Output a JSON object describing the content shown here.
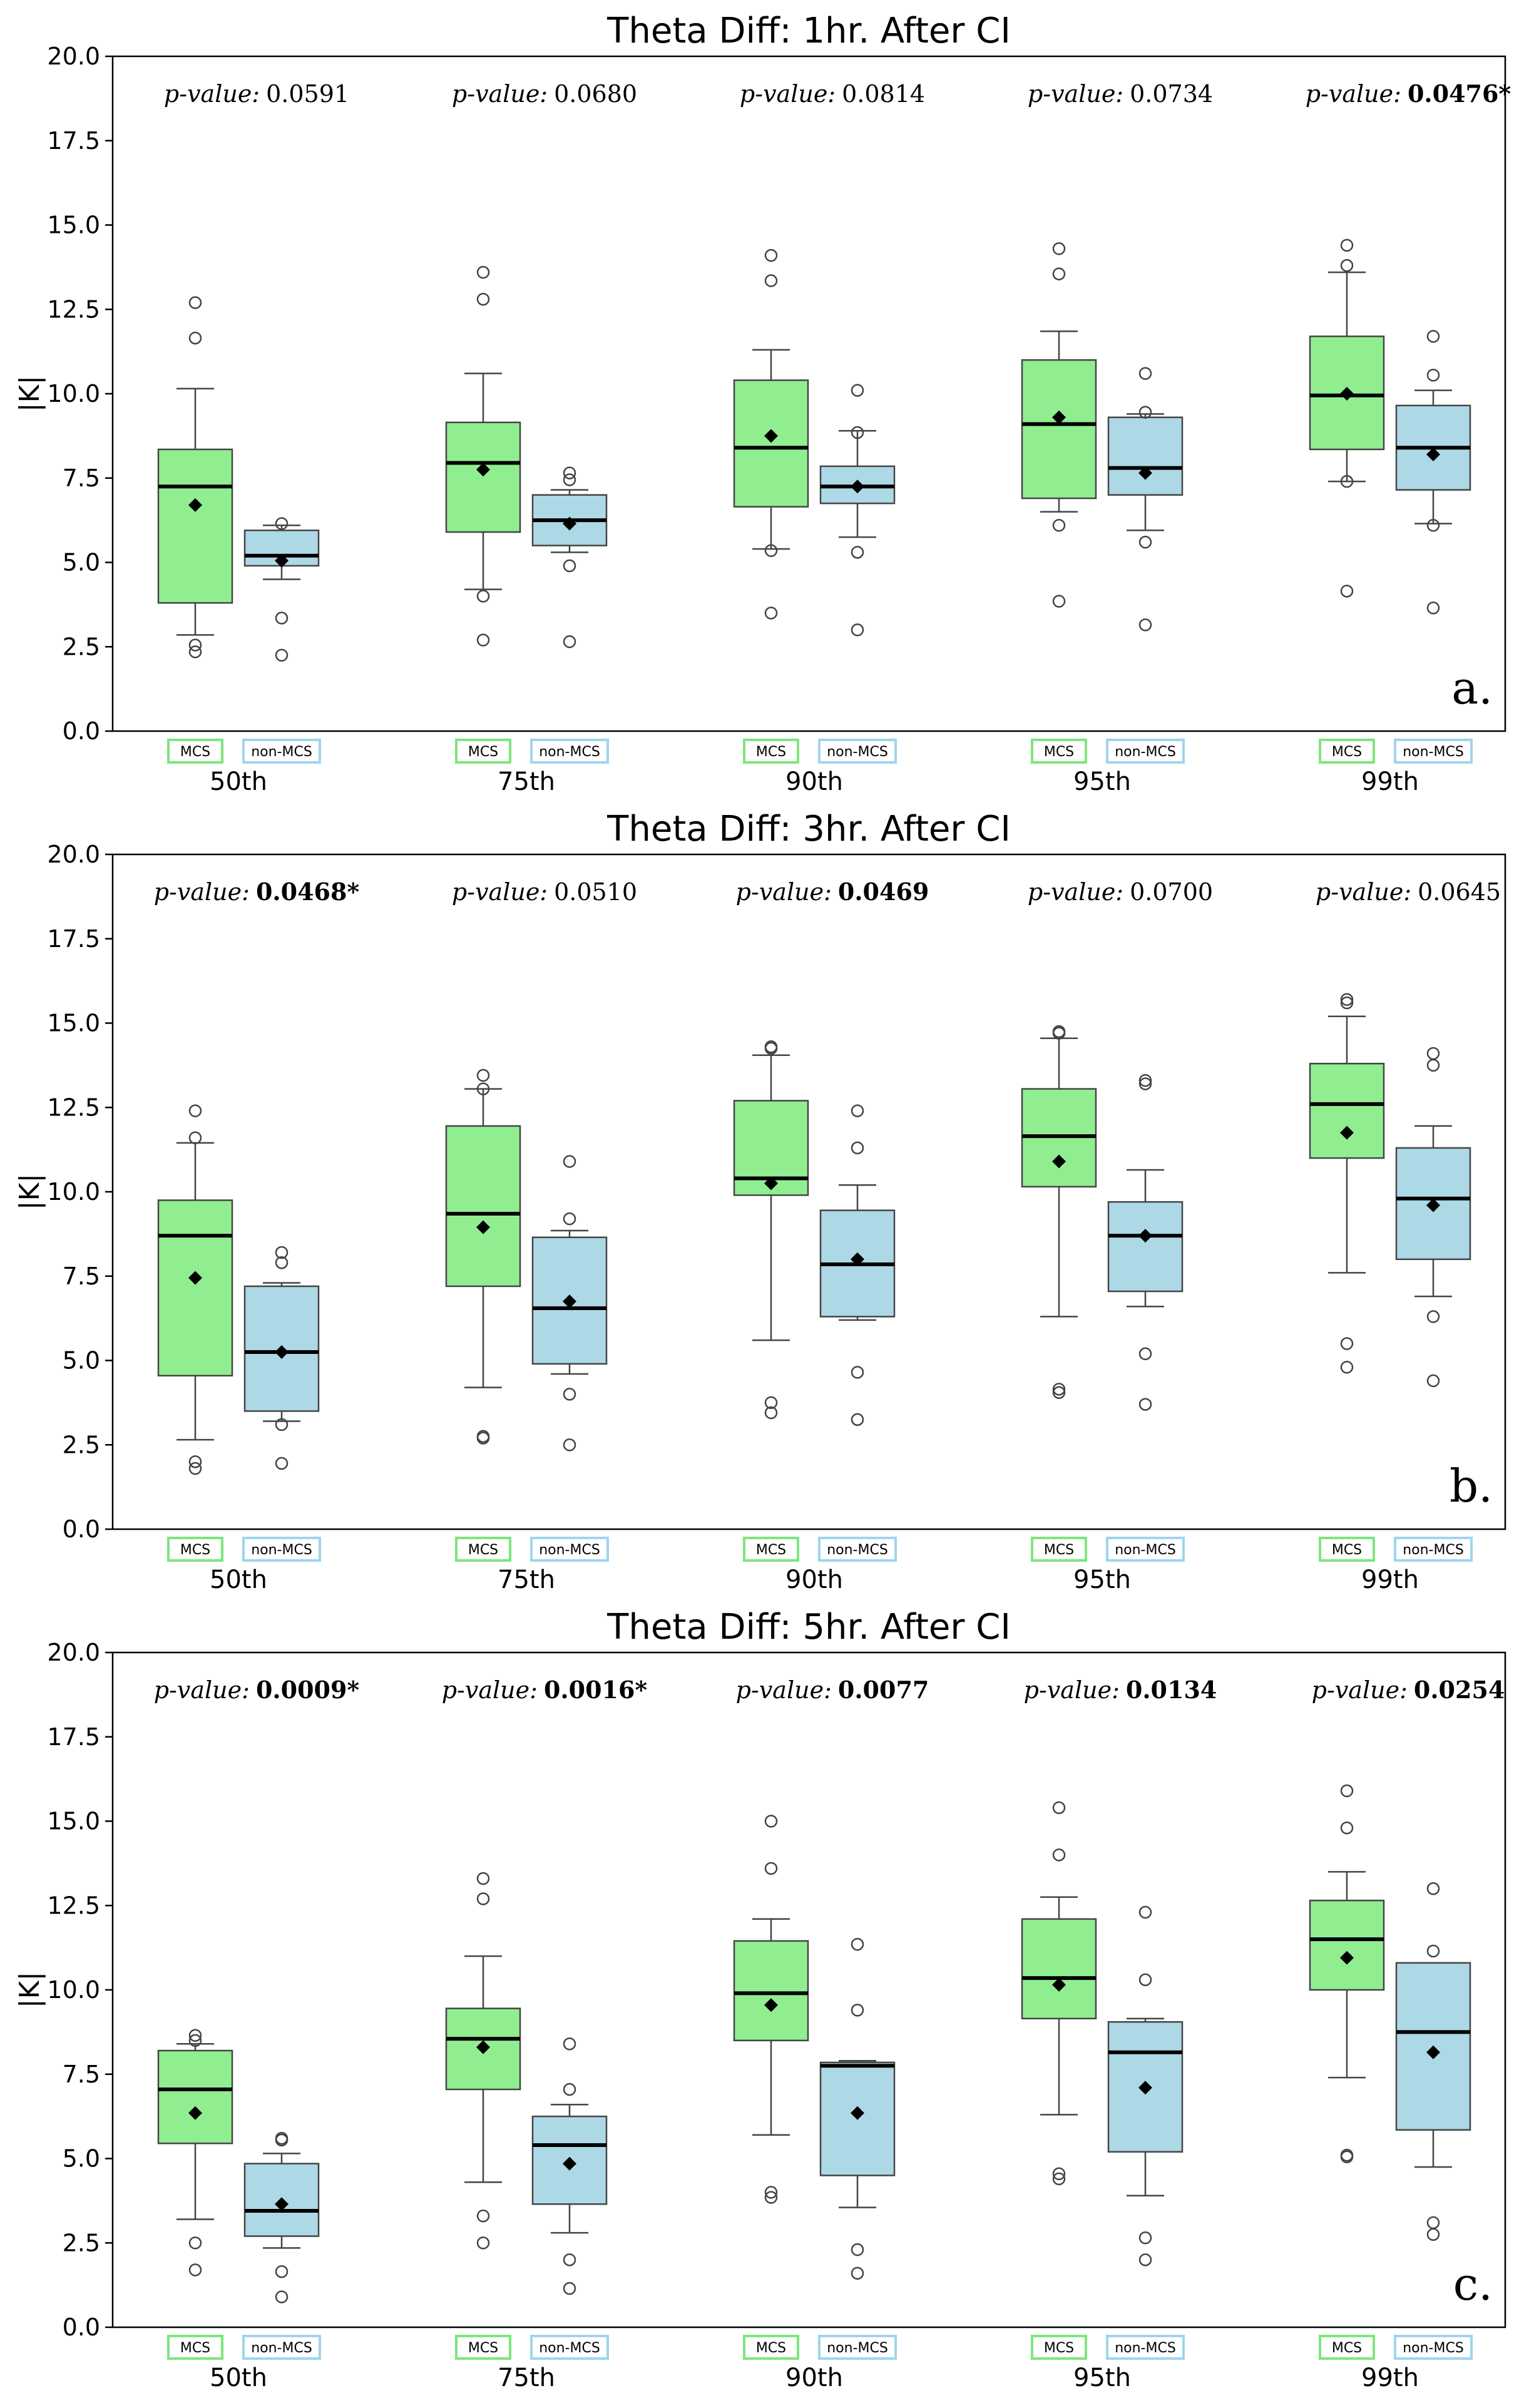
{
  "figure": {
    "y_label": "|K|",
    "groups": [
      "MCS",
      "non-MCS"
    ],
    "group_colors": {
      "MCS": "#90EE90",
      "non-MCS": "#ADD8E6"
    },
    "group_edge_colors": {
      "MCS": "#7ee57e",
      "non-MCS": "#9fd4ef"
    },
    "percentiles": [
      "50th",
      "75th",
      "90th",
      "95th",
      "99th"
    ],
    "p_value_label": "p-value:"
  },
  "chart_data": [
    {
      "type": "box",
      "panel": "a.",
      "title": "Theta Diff: 1hr. After CI",
      "ylabel": "|K|",
      "ylim": [
        0,
        20
      ],
      "yticks": [
        "0.0",
        "2.5",
        "5.0",
        "7.5",
        "10.0",
        "12.5",
        "15.0",
        "17.5",
        "20.0"
      ],
      "categories": [
        "50th",
        "75th",
        "90th",
        "95th",
        "99th"
      ],
      "p_values": [
        {
          "text": "0.0591",
          "bold": false
        },
        {
          "text": "0.0680",
          "bold": false
        },
        {
          "text": "0.0814",
          "bold": false
        },
        {
          "text": "0.0734",
          "bold": false
        },
        {
          "text": "0.0476*",
          "bold": true
        }
      ],
      "series": [
        {
          "name": "MCS",
          "boxes": [
            {
              "whislo": 2.85,
              "q1": 3.8,
              "med": 7.25,
              "q3": 8.35,
              "whishi": 10.15,
              "mean": 6.7,
              "fliers": [
                2.35,
                2.55,
                11.65,
                12.7
              ]
            },
            {
              "whislo": 4.2,
              "q1": 5.9,
              "med": 7.95,
              "q3": 9.15,
              "whishi": 10.6,
              "mean": 7.75,
              "fliers": [
                2.7,
                4.0,
                12.8,
                13.6
              ]
            },
            {
              "whislo": 5.4,
              "q1": 6.65,
              "med": 8.4,
              "q3": 10.4,
              "whishi": 11.3,
              "mean": 8.75,
              "fliers": [
                3.5,
                5.35,
                13.35,
                14.1
              ]
            },
            {
              "whislo": 6.5,
              "q1": 6.9,
              "med": 9.1,
              "q3": 11.0,
              "whishi": 11.85,
              "mean": 9.3,
              "fliers": [
                3.85,
                6.1,
                13.55,
                14.3
              ]
            },
            {
              "whislo": 7.4,
              "q1": 8.35,
              "med": 9.95,
              "q3": 11.7,
              "whishi": 13.6,
              "mean": 10.0,
              "fliers": [
                4.15,
                7.4,
                13.8,
                14.4
              ]
            }
          ]
        },
        {
          "name": "non-MCS",
          "boxes": [
            {
              "whislo": 4.5,
              "q1": 4.9,
              "med": 5.2,
              "q3": 5.95,
              "whishi": 6.1,
              "mean": 5.05,
              "fliers": [
                2.25,
                3.35,
                6.15
              ]
            },
            {
              "whislo": 5.3,
              "q1": 5.5,
              "med": 6.25,
              "q3": 7.0,
              "whishi": 7.15,
              "mean": 6.15,
              "fliers": [
                2.65,
                4.9,
                7.45,
                7.65
              ]
            },
            {
              "whislo": 5.75,
              "q1": 6.75,
              "med": 7.25,
              "q3": 7.85,
              "whishi": 8.9,
              "mean": 7.25,
              "fliers": [
                3.0,
                5.3,
                8.85,
                10.1
              ]
            },
            {
              "whislo": 5.95,
              "q1": 7.0,
              "med": 7.8,
              "q3": 9.3,
              "whishi": 9.4,
              "mean": 7.65,
              "fliers": [
                3.15,
                5.6,
                9.45,
                10.6
              ]
            },
            {
              "whislo": 6.15,
              "q1": 7.15,
              "med": 8.4,
              "q3": 9.65,
              "whishi": 10.1,
              "mean": 8.2,
              "fliers": [
                3.65,
                6.1,
                10.55,
                11.7
              ]
            }
          ]
        }
      ]
    },
    {
      "type": "box",
      "panel": "b.",
      "title": "Theta Diff: 3hr. After CI",
      "ylabel": "|K|",
      "ylim": [
        0,
        20
      ],
      "yticks": [
        "0.0",
        "2.5",
        "5.0",
        "7.5",
        "10.0",
        "12.5",
        "15.0",
        "17.5",
        "20.0"
      ],
      "categories": [
        "50th",
        "75th",
        "90th",
        "95th",
        "99th"
      ],
      "p_values": [
        {
          "text": "0.0468*",
          "bold": true
        },
        {
          "text": "0.0510",
          "bold": false
        },
        {
          "text": "0.0469",
          "bold": true
        },
        {
          "text": "0.0700",
          "bold": false
        },
        {
          "text": "0.0645",
          "bold": false
        }
      ],
      "series": [
        {
          "name": "MCS",
          "boxes": [
            {
              "whislo": 2.65,
              "q1": 4.55,
              "med": 8.7,
              "q3": 9.75,
              "whishi": 11.45,
              "mean": 7.45,
              "fliers": [
                1.8,
                2.0,
                11.6,
                12.4
              ]
            },
            {
              "whislo": 4.2,
              "q1": 7.2,
              "med": 9.35,
              "q3": 11.95,
              "whishi": 13.05,
              "mean": 8.95,
              "fliers": [
                2.7,
                2.75,
                13.05,
                13.45
              ]
            },
            {
              "whislo": 5.6,
              "q1": 9.9,
              "med": 10.4,
              "q3": 12.7,
              "whishi": 14.05,
              "mean": 10.25,
              "fliers": [
                3.45,
                3.75,
                14.25,
                14.3
              ]
            },
            {
              "whislo": 6.3,
              "q1": 10.15,
              "med": 11.65,
              "q3": 13.05,
              "whishi": 14.55,
              "mean": 10.9,
              "fliers": [
                4.05,
                4.15,
                14.7,
                14.75
              ]
            },
            {
              "whislo": 7.6,
              "q1": 11.0,
              "med": 12.6,
              "q3": 13.8,
              "whishi": 15.2,
              "mean": 11.75,
              "fliers": [
                4.8,
                5.5,
                15.6,
                15.7
              ]
            }
          ]
        },
        {
          "name": "non-MCS",
          "boxes": [
            {
              "whislo": 3.2,
              "q1": 3.5,
              "med": 5.25,
              "q3": 7.2,
              "whishi": 7.3,
              "mean": 5.25,
              "fliers": [
                1.95,
                3.1,
                7.9,
                8.2
              ]
            },
            {
              "whislo": 4.6,
              "q1": 4.9,
              "med": 6.55,
              "q3": 8.65,
              "whishi": 8.85,
              "mean": 6.75,
              "fliers": [
                2.5,
                4.0,
                9.2,
                10.9
              ]
            },
            {
              "whislo": 6.2,
              "q1": 6.3,
              "med": 7.85,
              "q3": 9.45,
              "whishi": 10.2,
              "mean": 8.0,
              "fliers": [
                3.25,
                4.65,
                11.3,
                12.4
              ]
            },
            {
              "whislo": 6.6,
              "q1": 7.05,
              "med": 8.7,
              "q3": 9.7,
              "whishi": 10.65,
              "mean": 8.7,
              "fliers": [
                3.7,
                5.2,
                13.2,
                13.3
              ]
            },
            {
              "whislo": 6.9,
              "q1": 8.0,
              "med": 9.8,
              "q3": 11.3,
              "whishi": 11.95,
              "mean": 9.6,
              "fliers": [
                4.4,
                6.3,
                13.75,
                14.1
              ]
            }
          ]
        }
      ]
    },
    {
      "type": "box",
      "panel": "c.",
      "title": "Theta Diff: 5hr. After CI",
      "ylabel": "|K|",
      "ylim": [
        0,
        20
      ],
      "yticks": [
        "0.0",
        "2.5",
        "5.0",
        "7.5",
        "10.0",
        "12.5",
        "15.0",
        "17.5",
        "20.0"
      ],
      "categories": [
        "50th",
        "75th",
        "90th",
        "95th",
        "99th"
      ],
      "p_values": [
        {
          "text": "0.0009*",
          "bold": true
        },
        {
          "text": "0.0016*",
          "bold": true
        },
        {
          "text": "0.0077",
          "bold": true
        },
        {
          "text": "0.0134",
          "bold": true
        },
        {
          "text": "0.0254",
          "bold": true
        }
      ],
      "series": [
        {
          "name": "MCS",
          "boxes": [
            {
              "whislo": 3.2,
              "q1": 5.45,
              "med": 7.05,
              "q3": 8.2,
              "whishi": 8.4,
              "mean": 6.35,
              "fliers": [
                1.7,
                2.5,
                8.5,
                8.65
              ]
            },
            {
              "whislo": 4.3,
              "q1": 7.05,
              "med": 8.55,
              "q3": 9.45,
              "whishi": 11.0,
              "mean": 8.3,
              "fliers": [
                2.5,
                3.3,
                12.7,
                13.3
              ]
            },
            {
              "whislo": 5.7,
              "q1": 8.5,
              "med": 9.9,
              "q3": 11.45,
              "whishi": 12.1,
              "mean": 9.55,
              "fliers": [
                3.85,
                4.0,
                13.6,
                15.0
              ]
            },
            {
              "whislo": 6.3,
              "q1": 9.15,
              "med": 10.35,
              "q3": 12.1,
              "whishi": 12.75,
              "mean": 10.15,
              "fliers": [
                4.4,
                4.55,
                14.0,
                15.4
              ]
            },
            {
              "whislo": 7.4,
              "q1": 10.0,
              "med": 11.5,
              "q3": 12.65,
              "whishi": 13.5,
              "mean": 10.95,
              "fliers": [
                5.05,
                5.1,
                14.8,
                15.9
              ]
            }
          ]
        },
        {
          "name": "non-MCS",
          "boxes": [
            {
              "whislo": 2.35,
              "q1": 2.7,
              "med": 3.45,
              "q3": 4.85,
              "whishi": 5.15,
              "mean": 3.65,
              "fliers": [
                0.9,
                1.65,
                5.55,
                5.6
              ]
            },
            {
              "whislo": 2.8,
              "q1": 3.65,
              "med": 5.4,
              "q3": 6.25,
              "whishi": 6.6,
              "mean": 4.85,
              "fliers": [
                1.15,
                2.0,
                7.05,
                8.4
              ]
            },
            {
              "whislo": 3.55,
              "q1": 4.5,
              "med": 7.75,
              "q3": 7.85,
              "whishi": 7.9,
              "mean": 6.35,
              "fliers": [
                1.6,
                2.3,
                9.4,
                11.35
              ]
            },
            {
              "whislo": 3.9,
              "q1": 5.2,
              "med": 8.15,
              "q3": 9.05,
              "whishi": 9.15,
              "mean": 7.1,
              "fliers": [
                2.0,
                2.65,
                10.3,
                12.3
              ]
            },
            {
              "whislo": 4.75,
              "q1": 5.85,
              "med": 8.75,
              "q3": 10.8,
              "whishi": 10.8,
              "mean": 8.15,
              "fliers": [
                2.75,
                3.1,
                11.15,
                13.0
              ]
            }
          ]
        }
      ]
    }
  ]
}
